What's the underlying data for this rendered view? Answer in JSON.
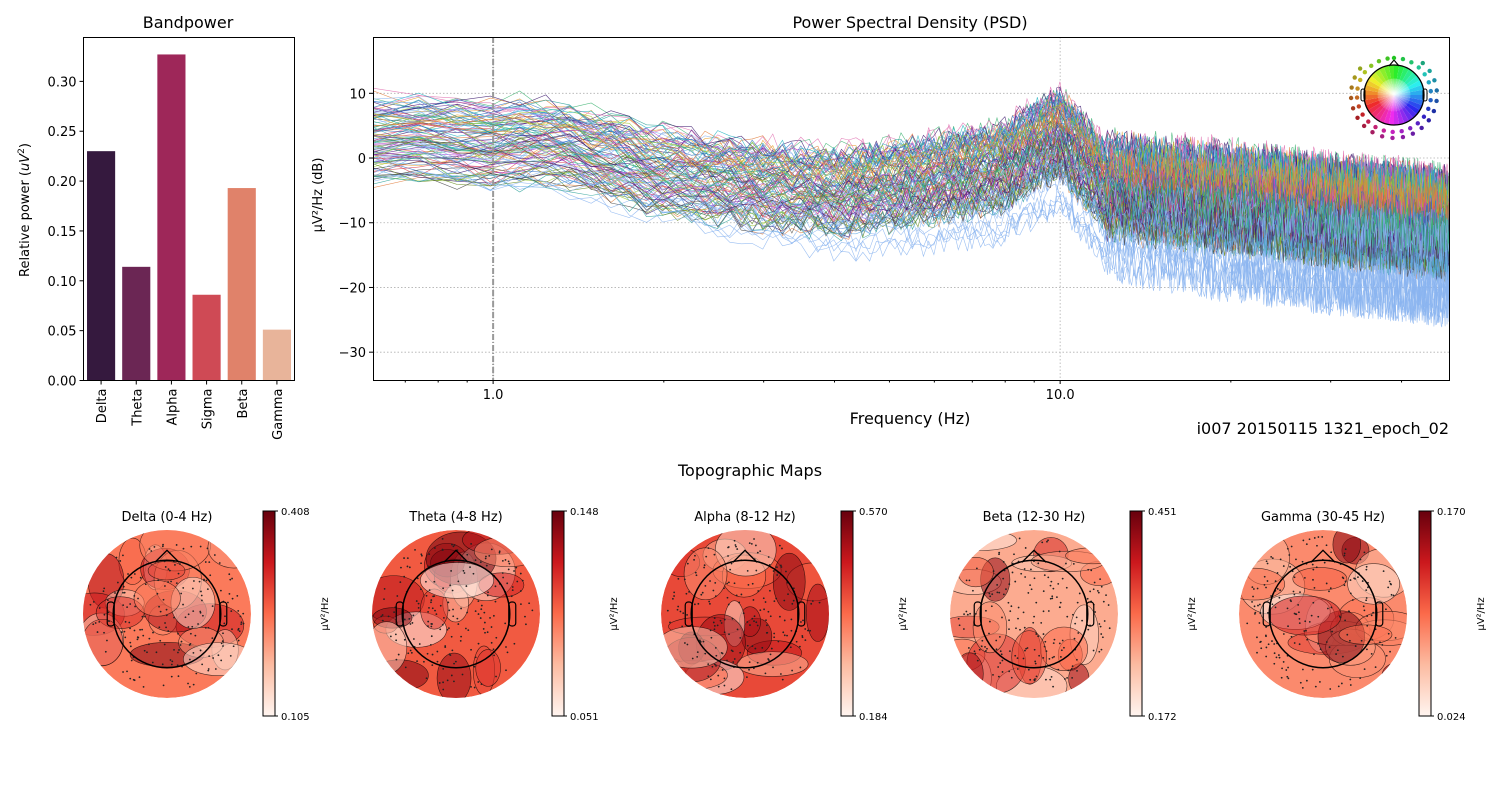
{
  "figure": {
    "recording_label": "i007 20150115 1321_epoch_02",
    "topomap_section_title": "Topographic Maps"
  },
  "chart_data": [
    {
      "id": "bandpower",
      "type": "bar",
      "title": "Bandpower",
      "xlabel": "",
      "ylabel": "Relative power ($uV^2$)",
      "ylabel_main": "Relative power (",
      "ylabel_unit": "uV",
      "ylabel_sup": "2",
      "ylabel_close": ")",
      "categories": [
        "Delta",
        "Theta",
        "Alpha",
        "Sigma",
        "Beta",
        "Gamma"
      ],
      "values": [
        0.23,
        0.114,
        0.327,
        0.086,
        0.193,
        0.051
      ],
      "colors": [
        "#35193e",
        "#6b2654",
        "#9e2759",
        "#cf4a55",
        "#e0826a",
        "#e8b49a"
      ],
      "ylim": [
        0,
        0.344
      ],
      "yticks": [
        0.0,
        0.05,
        0.1,
        0.15,
        0.2,
        0.25,
        0.3
      ],
      "ytick_labels": [
        "0.00",
        "0.05",
        "0.10",
        "0.15",
        "0.20",
        "0.25",
        "0.30"
      ],
      "grid": false
    },
    {
      "id": "psd",
      "type": "line",
      "title": "Power Spectral Density (PSD)",
      "xlabel": "Frequency (Hz)",
      "ylabel": "µV²/Hz (dB)",
      "xscale": "log",
      "xlim": [
        0.614,
        48.7
      ],
      "ylim": [
        -34.3,
        18.7
      ],
      "xticks": [
        1.0,
        10.0
      ],
      "xtick_labels": [
        "1.0",
        "10.0"
      ],
      "xminor_ticks": [
        0.7,
        0.8,
        0.9,
        2,
        3,
        4,
        5,
        6,
        7,
        8,
        9,
        20,
        30,
        40
      ],
      "yticks": [
        10,
        0,
        -10,
        -20,
        -30
      ],
      "ytick_labels": [
        "10",
        "0",
        "−10",
        "−20",
        "−30"
      ],
      "grid": true,
      "vline_x": 1.0,
      "channel_count_approx": 120,
      "mean_profile": {
        "freqs": [
          0.614,
          0.8,
          1.0,
          1.2,
          1.5,
          2.0,
          3.0,
          4.0,
          5.0,
          6.0,
          8.0,
          9.0,
          10.0,
          11.0,
          12.0,
          15.0,
          20.0,
          25.0,
          30.0,
          40.0,
          48.7
        ],
        "db": [
          3.0,
          3.0,
          2.0,
          3.0,
          1.0,
          -2.0,
          -4.0,
          -5.0,
          -4.0,
          -3.0,
          -1.0,
          2.0,
          4.0,
          0.0,
          -4.0,
          -5.0,
          -6.0,
          -7.0,
          -8.0,
          -9.0,
          -10.0
        ]
      },
      "spread_db": 6,
      "trace_colors": [
        "#7b2fbf",
        "#5a1f8a",
        "#3d1a6e",
        "#4a4a4a",
        "#2b6cc4",
        "#5fa8e6",
        "#8ab4f0",
        "#2aa198",
        "#3cb371",
        "#7ed957",
        "#9acd32",
        "#e07b39",
        "#e8a030",
        "#d94a5a",
        "#e070b0",
        "#b040d0",
        "#20b2c0",
        "#6b8e23"
      ],
      "inset_sensor_legend": "head-sensor-color-map"
    },
    {
      "id": "topomaps",
      "type": "heatmap",
      "colormap": "Reds",
      "colorbar_label": "µV²/Hz",
      "maps": [
        {
          "title": "Delta (0-4 Hz)",
          "vmin": "0.105",
          "vmax": "0.408",
          "mean_level": 0.45
        },
        {
          "title": "Theta (4-8 Hz)",
          "vmin": "0.051",
          "vmax": "0.148",
          "mean_level": 0.55
        },
        {
          "title": "Alpha (8-12 Hz)",
          "vmin": "0.184",
          "vmax": "0.570",
          "mean_level": 0.6
        },
        {
          "title": "Beta (12-30 Hz)",
          "vmin": "0.172",
          "vmax": "0.451",
          "mean_level": 0.3
        },
        {
          "title": "Gamma (30-45 Hz)",
          "vmin": "0.024",
          "vmax": "0.170",
          "mean_level": 0.4
        }
      ]
    }
  ]
}
